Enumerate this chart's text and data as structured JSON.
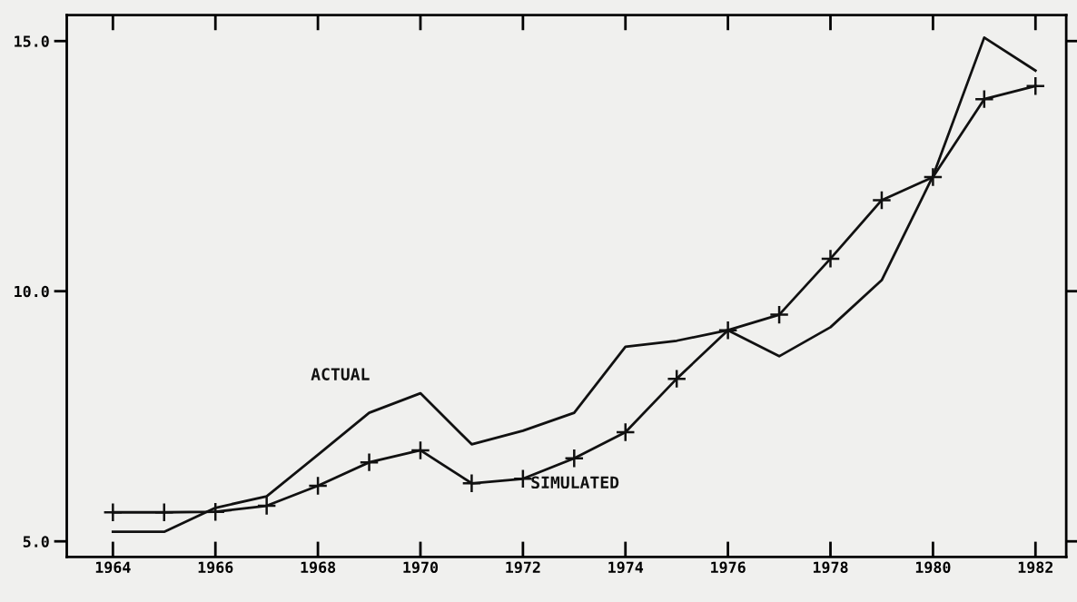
{
  "chart_data": {
    "type": "line",
    "x": [
      1964,
      1965,
      1966,
      1967,
      1968,
      1969,
      1970,
      1971,
      1972,
      1973,
      1974,
      1975,
      1976,
      1977,
      1978,
      1979,
      1980,
      1981,
      1982
    ],
    "series": [
      {
        "name": "ACTUAL",
        "color": "#111111",
        "marker": "none",
        "values": [
          5.19,
          5.19,
          5.67,
          5.9,
          6.73,
          7.57,
          7.96,
          6.94,
          7.21,
          7.57,
          8.89,
          9.01,
          9.22,
          8.7,
          9.28,
          10.22,
          12.3,
          15.07,
          14.41
        ]
      },
      {
        "name": "SIMULATED",
        "color": "#111111",
        "marker": "cross",
        "values": [
          5.58,
          5.58,
          5.59,
          5.71,
          6.11,
          6.58,
          6.82,
          6.16,
          6.25,
          6.66,
          7.18,
          8.25,
          9.22,
          9.53,
          10.65,
          11.82,
          12.28,
          13.84,
          14.1
        ]
      }
    ],
    "xlim": [
      1963.1,
      1982.6
    ],
    "ylim": [
      4.69,
      15.52
    ],
    "xticks": [
      1964,
      1966,
      1968,
      1970,
      1972,
      1974,
      1976,
      1978,
      1980,
      1982
    ],
    "yticks": [
      {
        "value": 5,
        "label": "5.0"
      },
      {
        "value": 10,
        "label": "10.0"
      },
      {
        "value": 15,
        "label": "15.0"
      }
    ],
    "grid": false,
    "legend": false,
    "line_style": "solid"
  }
}
